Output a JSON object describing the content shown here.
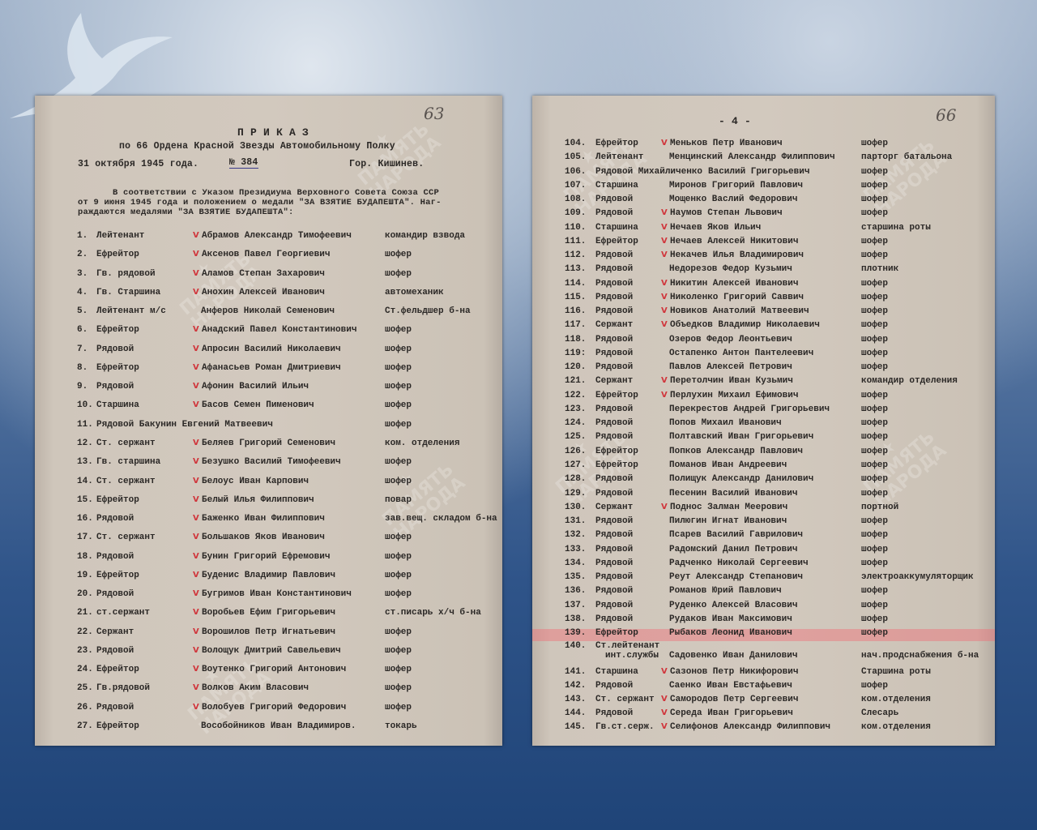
{
  "left_page": {
    "page_number_handwritten": "63",
    "title": "П Р И К А З",
    "subtitle": "по 66 Ордена Красной Звезды Автомобильному Полку",
    "date": "31 октября 1945 года.",
    "order_number": "№ 384",
    "city": "Гор. Кишинев.",
    "intro_line1": "В соответствии с Указом Президиума Верховного Совета Союза ССР",
    "intro_line2": "от 9 июня 1945 года и положением о медали \"ЗА ВЗЯТИЕ БУДАПЕШТА\". Наг-",
    "intro_line3": "раждаются медалями \"ЗА ВЗЯТИЕ БУДАПЕШТА\":",
    "rows": [
      {
        "num": "1.",
        "rank": "Лейтенант",
        "name": "Абрамов Александр Тимофеевич",
        "position": "командир взвода",
        "tick": true
      },
      {
        "num": "2.",
        "rank": "Ефрейтор",
        "name": "Аксенов Павел Георгиевич",
        "position": "шофер",
        "tick": true
      },
      {
        "num": "3.",
        "rank": "Гв. рядовой",
        "name": "Аламов Степан Захарович",
        "position": "шофер",
        "tick": true
      },
      {
        "num": "4.",
        "rank": "Гв. Старшина",
        "name": "Анохин Алексей Иванович",
        "position": "автомеханик",
        "tick": true
      },
      {
        "num": "5.",
        "rank": "Лейтенант м/с",
        "name": "Анферов Николай Семенович",
        "position": "Ст.фельдшер б-на",
        "tick": false
      },
      {
        "num": "6.",
        "rank": "Ефрейтор",
        "name": "Анадский Павел Константинович",
        "position": "шофер",
        "tick": true
      },
      {
        "num": "7.",
        "rank": "Рядовой",
        "name": "Апросин Василий Николаевич",
        "position": "шофер",
        "tick": true
      },
      {
        "num": "8.",
        "rank": "Ефрейтор",
        "name": "Афанасьев Роман Дмитриевич",
        "position": "шофер",
        "tick": true
      },
      {
        "num": "9.",
        "rank": "Рядовой",
        "name": "Афонин Василий Ильич",
        "position": "шофер",
        "tick": true
      },
      {
        "num": "10.",
        "rank": "Старшина",
        "name": "Басов Семен Пименович",
        "position": "шофер",
        "tick": true
      },
      {
        "num": "11.",
        "rank": "Рядовой Бакунин Евгений Матвеевич",
        "name": "",
        "position": "шофер",
        "tick": false
      },
      {
        "num": "12.",
        "rank": "Ст. сержант",
        "name": "Беляев Григорий Семенович",
        "position": "ком. отделения",
        "tick": true
      },
      {
        "num": "13.",
        "rank": "Гв. старшина",
        "name": "Безушко Василий Тимофеевич",
        "position": "шофер",
        "tick": true
      },
      {
        "num": "14.",
        "rank": "Ст. сержант",
        "name": "Белоус Иван Карпович",
        "position": "шофер",
        "tick": true
      },
      {
        "num": "15.",
        "rank": "Ефрейтор",
        "name": "Белый Илья Филиппович",
        "position": "повар",
        "tick": true
      },
      {
        "num": "16.",
        "rank": "Рядовой",
        "name": "Баженко Иван Филиппович",
        "position": "зав.вещ. складом б-на",
        "tick": true
      },
      {
        "num": "17.",
        "rank": "Ст. сержант",
        "name": "Большаков Яков Иванович",
        "position": "шофер",
        "tick": true
      },
      {
        "num": "18.",
        "rank": "Рядовой",
        "name": "Бунин Григорий Ефремович",
        "position": "шофер",
        "tick": true
      },
      {
        "num": "19.",
        "rank": "Ефрейтор",
        "name": "Буденис Владимир Павлович",
        "position": "шофер",
        "tick": true
      },
      {
        "num": "20.",
        "rank": "Рядовой",
        "name": "Бугримов Иван Константинович",
        "position": "шофер",
        "tick": true
      },
      {
        "num": "21.",
        "rank": "ст.сержант",
        "name": "Воробьев Ефим Григорьевич",
        "position": "ст.писарь х/ч б-на",
        "tick": true
      },
      {
        "num": "22.",
        "rank": "Сержант",
        "name": "Ворошилов Петр Игнатьевич",
        "position": "шофер",
        "tick": true
      },
      {
        "num": "23.",
        "rank": "Рядовой",
        "name": "Волощук Дмитрий Савельевич",
        "position": "шофер",
        "tick": true
      },
      {
        "num": "24.",
        "rank": "Ефрейтор",
        "name": "Воутенко Григорий Антонович",
        "position": "шофер",
        "tick": true
      },
      {
        "num": "25.",
        "rank": "Гв.рядовой",
        "name": "Волков Аким Власович",
        "position": "шофер",
        "tick": true
      },
      {
        "num": "26.",
        "rank": "Рядовой",
        "name": "Волобуев Григорий Федорович",
        "position": "шофер",
        "tick": true
      },
      {
        "num": "27.",
        "rank": "Ефрейтор",
        "name": "Вособойников Иван Владимиров.",
        "position": "токарь",
        "tick": false
      }
    ]
  },
  "right_page": {
    "page_number_handwritten": "66",
    "page_marker": "- 4 -",
    "highlighted_row": "139.",
    "rows": [
      {
        "num": "104.",
        "rank": "Ефрейтор",
        "name": "Меньков Петр Иванович",
        "position": "шофер",
        "tick": true
      },
      {
        "num": "105.",
        "rank": "Лейтенант",
        "name": "Менцинский Александр Филиппович",
        "position": "парторг батальона",
        "tick": false
      },
      {
        "num": "106.",
        "rank": "Рядовой Михайличенко",
        "name": "Василий Григорьевич",
        "position": "шофер",
        "tick": false
      },
      {
        "num": "107.",
        "rank": "Старшина",
        "name": "Миронов Григорий Павлович",
        "position": "шофер",
        "tick": false
      },
      {
        "num": "108.",
        "rank": "Рядовой",
        "name": "Мощенко Васлий Федорович",
        "position": "шофер",
        "tick": false
      },
      {
        "num": "109.",
        "rank": "Рядовой",
        "name": "Наумов Степан Львович",
        "position": "шофер",
        "tick": true
      },
      {
        "num": "110.",
        "rank": "Старшина",
        "name": "Нечаев Яков Ильич",
        "position": "старшина роты",
        "tick": true
      },
      {
        "num": "111.",
        "rank": "Ефрейтор",
        "name": "Нечаев Алексей Никитович",
        "position": "шофер",
        "tick": true
      },
      {
        "num": "112.",
        "rank": "Рядовой",
        "name": "Некачев Илья Владимирович",
        "position": "шофер",
        "tick": true
      },
      {
        "num": "113.",
        "rank": "Рядовой",
        "name": "Недорезов Федор Кузьмич",
        "position": "плотник",
        "tick": false
      },
      {
        "num": "114.",
        "rank": "Рядовой",
        "name": "Никитин Алексей Иванович",
        "position": "шофер",
        "tick": true
      },
      {
        "num": "115.",
        "rank": "Рядовой",
        "name": "Николенко Григорий Саввич",
        "position": "шофер",
        "tick": true
      },
      {
        "num": "116.",
        "rank": "Рядовой",
        "name": "Новиков Анатолий Матвеевич",
        "position": "шофер",
        "tick": true
      },
      {
        "num": "117.",
        "rank": "Сержант",
        "name": "Объедков Владимир Николаевич",
        "position": "шофер",
        "tick": true
      },
      {
        "num": "118.",
        "rank": "Рядовой",
        "name": "Озеров Федор Леонтьевич",
        "position": "шофер",
        "tick": false
      },
      {
        "num": "119:",
        "rank": "Рядовой",
        "name": "Остапенко Антон Пантелеевич",
        "position": "шофер",
        "tick": false
      },
      {
        "num": "120.",
        "rank": "Рядовой",
        "name": "Павлов Алексей Петрович",
        "position": "шофер",
        "tick": false
      },
      {
        "num": "121.",
        "rank": "Сержант",
        "name": "Перетолчин Иван Кузьмич",
        "position": "командир отделения",
        "tick": true
      },
      {
        "num": "122.",
        "rank": "Ефрейтор",
        "name": "Перлухин Михаил Ефимович",
        "position": "шофер",
        "tick": true
      },
      {
        "num": "123.",
        "rank": "Рядовой",
        "name": "Перекрестов Андрей Григорьевич",
        "position": "шофер",
        "tick": false
      },
      {
        "num": "124.",
        "rank": "Рядовой",
        "name": "Попов Михаил Иванович",
        "position": "шофер",
        "tick": false
      },
      {
        "num": "125.",
        "rank": "Рядовой",
        "name": "Полтавский Иван Григорьевич",
        "position": "шофер",
        "tick": false
      },
      {
        "num": "126.",
        "rank": "Ефрейтор",
        "name": "Попков Александр Павлович",
        "position": "шофер",
        "tick": false
      },
      {
        "num": "127.",
        "rank": "Ефрейтор",
        "name": "Поманов Иван Андреевич",
        "position": "шофер",
        "tick": false
      },
      {
        "num": "128.",
        "rank": "Рядовой",
        "name": "Полищук Александр Данилович",
        "position": "шофер",
        "tick": false
      },
      {
        "num": "129.",
        "rank": "Рядовой",
        "name": "Песенин Василий Иванович",
        "position": "шофер",
        "tick": false
      },
      {
        "num": "130.",
        "rank": "Сержант",
        "name": "Поднос Залман Меерович",
        "position": "портной",
        "tick": true
      },
      {
        "num": "131.",
        "rank": "Рядовой",
        "name": "Пилюгин Игнат Иванович",
        "position": "шофер",
        "tick": false
      },
      {
        "num": "132.",
        "rank": "Рядовой",
        "name": "Псарев Василий Гаврилович",
        "position": "шофер",
        "tick": false
      },
      {
        "num": "133.",
        "rank": "Рядовой",
        "name": "Радомский Данил Петрович",
        "position": "шофер",
        "tick": false
      },
      {
        "num": "134.",
        "rank": "Рядовой",
        "name": "Радченко Николай Сергеевич",
        "position": "шофер",
        "tick": false
      },
      {
        "num": "135.",
        "rank": "Рядовой",
        "name": "Реут Александр Степанович",
        "position": "электроаккумуляторщик",
        "tick": false
      },
      {
        "num": "136.",
        "rank": "Рядовой",
        "name": "Романов Юрий Павлович",
        "position": "шофер",
        "tick": false
      },
      {
        "num": "137.",
        "rank": "Рядовой",
        "name": "Руденко Алексей Власович",
        "position": "шофер",
        "tick": false
      },
      {
        "num": "138.",
        "rank": "Рядовой",
        "name": "Рудаков Иван Максимович",
        "position": "шофер",
        "tick": false
      },
      {
        "num": "139.",
        "rank": "Ефрейтор",
        "name": "Рыбаков Леонид Иванович",
        "position": "шофер",
        "tick": false
      },
      {
        "num": "140.",
        "rank": "Ст.лейтенант",
        "rank2": "инт.службы",
        "name": "Садовенко Иван Данилович",
        "position": "нач.продснабжения б-на",
        "tick": false
      },
      {
        "num": "141.",
        "rank": "Старшина",
        "name": "Сазонов Петр Никифорович",
        "position": "Старшина роты",
        "tick": true
      },
      {
        "num": "142.",
        "rank": "Рядовой",
        "name": "Сaенко Иван Евстафьевич",
        "position": "шофер",
        "tick": false
      },
      {
        "num": "143.",
        "rank": "Ст. сержант",
        "name": "Самородов Петр Сергеевич",
        "position": "ком.отделения",
        "tick": true
      },
      {
        "num": "144.",
        "rank": "Рядовой",
        "name": "Середа Иван Григорьевич",
        "position": "Слесарь",
        "tick": true
      },
      {
        "num": "145.",
        "rank": "Гв.ст.серж.",
        "name": "Селифонов Александр Филиппович",
        "position": "ком.отделения",
        "tick": true
      }
    ]
  },
  "watermark": "ПАМЯТЬ НАРОДА"
}
